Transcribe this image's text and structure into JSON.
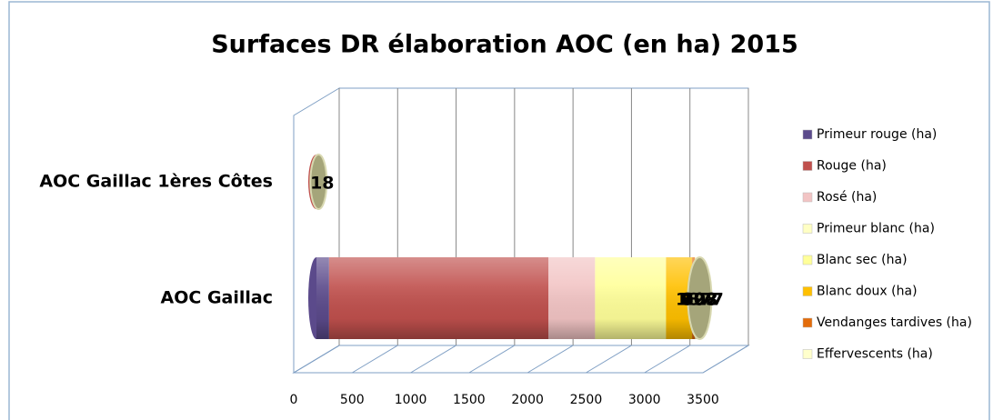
{
  "chart_data": {
    "type": "bar3d_stacked_horizontal",
    "title": "Surfaces DR élaboration AOC (en ha) 2015",
    "categories": [
      "AOC Gaillac 1ères Côtes",
      "AOC Gaillac"
    ],
    "series": [
      {
        "name": "Primeur rouge (ha)",
        "color": "#5b4a8b",
        "values": [
          null,
          108
        ],
        "value_labels": [
          null,
          "108"
        ]
      },
      {
        "name": "Rouge (ha)",
        "color": "#c0504d",
        "values": [
          18,
          1877
        ],
        "value_labels": [
          "18",
          "1877"
        ]
      },
      {
        "name": "Rosé (ha)",
        "color": "#f2c4c4",
        "values": [
          null,
          398
        ],
        "value_labels": [
          null,
          "398"
        ]
      },
      {
        "name": "Primeur blanc (ha)",
        "color": "#ffffc4",
        "values": [
          null,
          null
        ],
        "value_labels": [
          null,
          null
        ]
      },
      {
        "name": "Blanc sec (ha)",
        "color": "#ffff99",
        "values": [
          null,
          607
        ],
        "value_labels": [
          null,
          "607"
        ]
      },
      {
        "name": "Blanc doux (ha)",
        "color": "#ffc000",
        "values": [
          null,
          223
        ],
        "value_labels": [
          null,
          "223"
        ]
      },
      {
        "name": "Vendanges tardives (ha)",
        "color": "#e36c0a",
        "values": [
          null,
          25
        ],
        "value_labels": [
          null,
          null
        ]
      },
      {
        "name": "Effervescents (ha)",
        "color": "#ffffcc",
        "values": [
          null,
          40
        ],
        "value_labels": [
          null,
          null
        ]
      }
    ],
    "xlim": [
      0,
      3500
    ],
    "xticks": [
      0,
      500,
      1000,
      1500,
      2000,
      2500,
      3000,
      3500
    ],
    "grid": true,
    "legend": "right"
  }
}
